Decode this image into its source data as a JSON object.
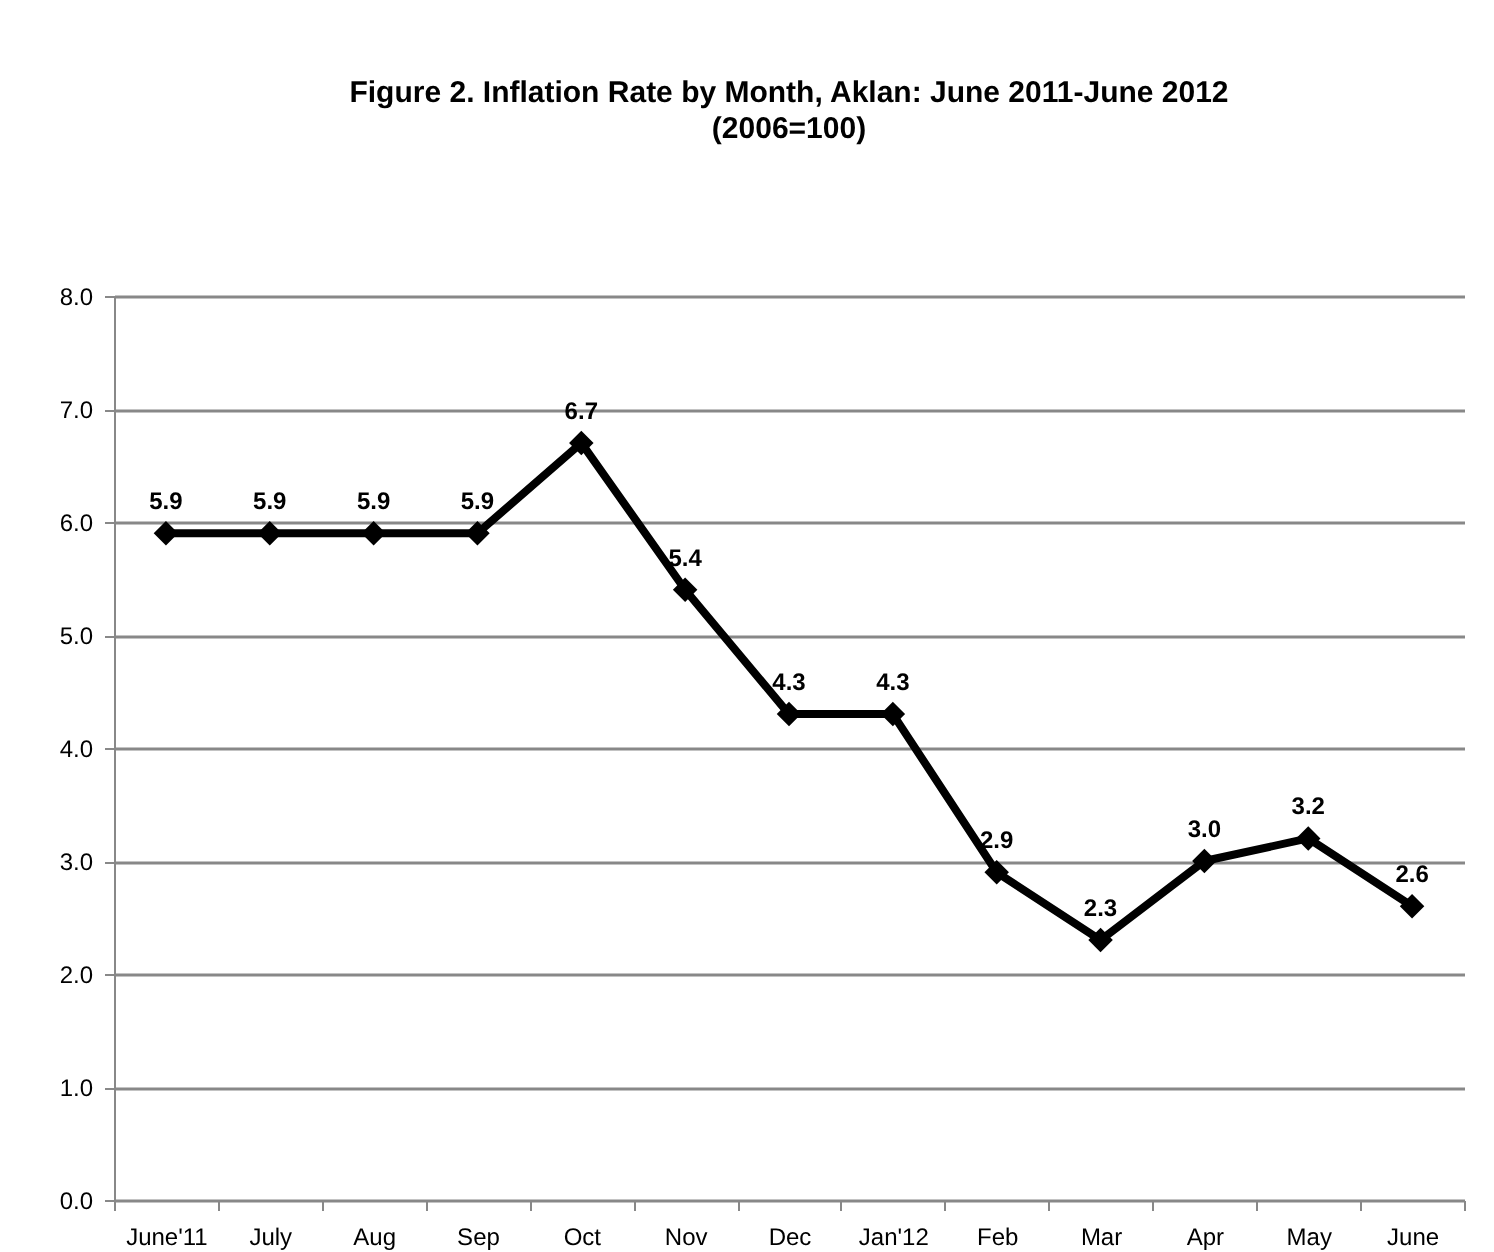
{
  "chart_data": {
    "type": "line",
    "title": "Figure 2. Inflation Rate by Month, Aklan: June 2011-June 2012",
    "subtitle": "(2006=100)",
    "categories": [
      "June'11",
      "July",
      "Aug",
      "Sep",
      "Oct",
      "Nov",
      "Dec",
      "Jan'12",
      "Feb",
      "Mar",
      "Apr",
      "May",
      "June"
    ],
    "series": [
      {
        "color": "#000000",
        "values": [
          5.9,
          5.9,
          5.9,
          5.9,
          6.7,
          5.4,
          4.3,
          4.3,
          2.9,
          2.3,
          3.0,
          3.2,
          2.6
        ],
        "value_labels": [
          "5.9",
          "5.9",
          "5.9",
          "5.9",
          "6.7",
          "5.4",
          "4.3",
          "4.3",
          "2.9",
          "2.3",
          "3.0",
          "3.2",
          "2.6"
        ]
      }
    ],
    "ylim": [
      0,
      8
    ],
    "yticks": [
      {
        "value": 0,
        "label": "0.0"
      },
      {
        "value": 1,
        "label": "1.0"
      },
      {
        "value": 2,
        "label": "2.0"
      },
      {
        "value": 3,
        "label": "3.0"
      },
      {
        "value": 4,
        "label": "4.0"
      },
      {
        "value": 5,
        "label": "5.0"
      },
      {
        "value": 6,
        "label": "6.0"
      },
      {
        "value": 7,
        "label": "7.0"
      },
      {
        "value": 8,
        "label": "8.0"
      }
    ],
    "grid": "y",
    "marker": "diamond",
    "line_style": "solid"
  }
}
